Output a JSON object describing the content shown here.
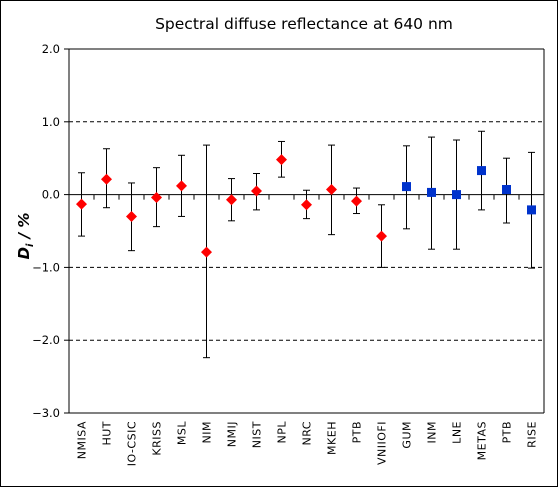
{
  "chart_data": {
    "type": "scatter",
    "title": "Spectral diffuse reflectance at 640 nm",
    "ylabel_main": "D",
    "ylabel_sub": "i",
    "ylabel_rest": " / %",
    "ylim": [
      -3.0,
      2.0
    ],
    "yticks": [
      2.0,
      1.0,
      0.0,
      -1.0,
      -2.0,
      -3.0
    ],
    "ytick_labels": [
      "2.0",
      "1.0",
      "0.0",
      "−1.0",
      "−2.0",
      "−3.0"
    ],
    "grid": "dashed horizontal at 1, -1, -2",
    "categories": [
      "NMISA",
      "HUT",
      "IO-CSIC",
      "KRISS",
      "MSL",
      "NIM",
      "NMIJ",
      "NIST",
      "NPL",
      "NRC",
      "MKEH",
      "PTB",
      "VNIIOFI",
      "GUM",
      "INM",
      "LNE",
      "METAS",
      "PTB",
      "RISE"
    ],
    "series": [
      {
        "marker": "diamond",
        "color": "#ff0000",
        "points": [
          {
            "cat": 0,
            "y": -0.13,
            "lo": -0.57,
            "hi": 0.3
          },
          {
            "cat": 1,
            "y": 0.21,
            "lo": -0.18,
            "hi": 0.63
          },
          {
            "cat": 2,
            "y": -0.3,
            "lo": -0.77,
            "hi": 0.16
          },
          {
            "cat": 3,
            "y": -0.04,
            "lo": -0.44,
            "hi": 0.37
          },
          {
            "cat": 4,
            "y": 0.12,
            "lo": -0.3,
            "hi": 0.54
          },
          {
            "cat": 5,
            "y": -0.79,
            "lo": -2.24,
            "hi": 0.68
          },
          {
            "cat": 6,
            "y": -0.07,
            "lo": -0.36,
            "hi": 0.22
          },
          {
            "cat": 7,
            "y": 0.05,
            "lo": -0.21,
            "hi": 0.29
          },
          {
            "cat": 8,
            "y": 0.48,
            "lo": 0.24,
            "hi": 0.73
          },
          {
            "cat": 9,
            "y": -0.14,
            "lo": -0.33,
            "hi": 0.06
          },
          {
            "cat": 10,
            "y": 0.07,
            "lo": -0.55,
            "hi": 0.68
          },
          {
            "cat": 11,
            "y": -0.09,
            "lo": -0.26,
            "hi": 0.09
          },
          {
            "cat": 12,
            "y": -0.57,
            "lo": -1.0,
            "hi": -0.14
          }
        ]
      },
      {
        "marker": "square",
        "color": "#0033cc",
        "points": [
          {
            "cat": 13,
            "y": 0.11,
            "lo": -0.47,
            "hi": 0.67
          },
          {
            "cat": 14,
            "y": 0.03,
            "lo": -0.75,
            "hi": 0.79
          },
          {
            "cat": 15,
            "y": 0.0,
            "lo": -0.75,
            "hi": 0.75
          },
          {
            "cat": 16,
            "y": 0.33,
            "lo": -0.21,
            "hi": 0.87
          },
          {
            "cat": 17,
            "y": 0.07,
            "lo": -0.39,
            "hi": 0.5
          },
          {
            "cat": 18,
            "y": -0.21,
            "lo": -1.01,
            "hi": 0.58
          }
        ]
      }
    ]
  }
}
